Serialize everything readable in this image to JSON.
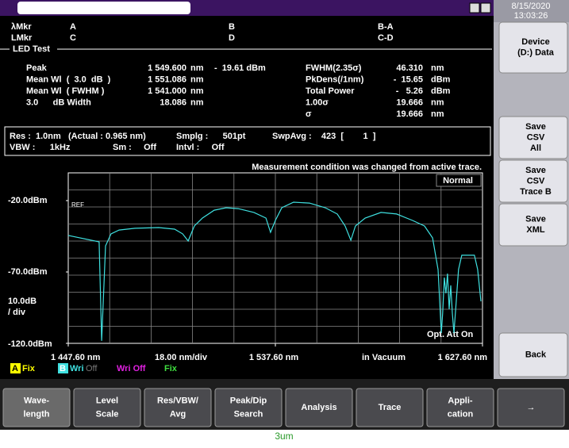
{
  "title_bar": {
    "date": "8/15/2020",
    "time": "13:03:26"
  },
  "markers": {
    "rows": [
      [
        "λMkr",
        "A",
        "B",
        "B-A"
      ],
      [
        "LMkr",
        "C",
        "D",
        "C-D"
      ]
    ]
  },
  "section": "LED Test",
  "results": {
    "left": [
      [
        "Peak",
        "1 549.600",
        "nm"
      ],
      [
        "Mean Wl  (  3.0  dB  )",
        "1 551.086",
        "nm"
      ],
      [
        "Mean Wl  ( FWHM )",
        "1 541.000",
        "nm"
      ],
      [
        "3.0      dB Width",
        "18.086",
        "nm"
      ]
    ],
    "peak_level": "-  19.61 dBm",
    "right": [
      [
        "FWHM(2.35σ)",
        "46.310",
        "nm"
      ],
      [
        "PkDens(/1nm)",
        "-  15.65",
        "dBm"
      ],
      [
        "Total Power",
        "-   5.26",
        "dBm"
      ],
      [
        "1.00σ",
        "19.666",
        "nm"
      ],
      [
        "σ",
        "19.666",
        "nm"
      ]
    ]
  },
  "settings": [
    [
      "Res :  1.0nm   (Actual : 0.965 nm)",
      "Smplg :      501pt",
      "SwpAvg :    423  [        1  ]"
    ],
    [
      "VBW :      1kHz",
      "Sm :     Off",
      "Intvl :     Off"
    ]
  ],
  "notice": "Measurement condition was changed from active trace.",
  "plot_labels": {
    "mode": "Normal",
    "ref": "REF",
    "att": "Opt. Att On",
    "scale": [
      "10.0dB",
      "/ div"
    ],
    "x_div": "18.00 nm/div",
    "medium": "in Vacuum"
  },
  "legend": [
    {
      "key": "A",
      "text": "Fix"
    },
    {
      "key": "B",
      "text": "Wri",
      "state": "Off"
    },
    {
      "text": "Wri Off"
    },
    {
      "text": "Fix"
    }
  ],
  "chart_data": {
    "type": "line",
    "color": "#3fe0e0",
    "xlim": [
      1447.6,
      1627.6
    ],
    "ylim": [
      -20,
      -120
    ],
    "xticks": [
      {
        "value": 1447.6,
        "label": "1 447.60 nm"
      },
      {
        "value": 1537.6,
        "label": "1 537.60 nm"
      },
      {
        "value": 1627.6,
        "label": "1 627.60 nm"
      }
    ],
    "yticks": [
      {
        "value": -20,
        "label": "-20.0dBm"
      },
      {
        "value": -70,
        "label": "-70.0dBm"
      },
      {
        "value": -120,
        "label": "-120.0dBm"
      }
    ],
    "x": [
      1447.6,
      1461.0,
      1462.1,
      1463.8,
      1466.2,
      1469.7,
      1476.6,
      1486.9,
      1493.8,
      1497.3,
      1499.7,
      1502.4,
      1505.9,
      1511.0,
      1516.2,
      1521.4,
      1528.3,
      1533.5,
      1535.5,
      1537.6,
      1540.4,
      1545.5,
      1552.4,
      1559.3,
      1564.5,
      1567.9,
      1570.4,
      1572.4,
      1576.6,
      1583.5,
      1590.3,
      1597.2,
      1602.4,
      1605.9,
      1608.3,
      1609.7,
      1610.3,
      1611.0,
      1611.7,
      1612.4,
      1613.1,
      1613.8,
      1614.5,
      1615.2,
      1616.2,
      1617.2,
      1618.6,
      1624.1,
      1625.5,
      1626.9
    ],
    "values": [
      -44.4,
      -48.9,
      -118.3,
      -51.7,
      -43.3,
      -40.6,
      -39.4,
      -38.9,
      -40.0,
      -43.3,
      -48.3,
      -37.8,
      -32.2,
      -26.7,
      -25.0,
      -25.6,
      -28.3,
      -32.2,
      -42.2,
      -33.9,
      -25.0,
      -21.1,
      -21.7,
      -25.0,
      -29.4,
      -37.8,
      -47.8,
      -37.8,
      -32.2,
      -28.3,
      -29.4,
      -33.9,
      -37.8,
      -46.1,
      -68.3,
      -112.8,
      -98.9,
      -73.9,
      -85.0,
      -71.1,
      -96.1,
      -79.4,
      -98.9,
      -112.8,
      -90.6,
      -68.3,
      -58.3,
      -58.3,
      -68.3,
      -90.6
    ]
  },
  "softkeys": [
    [
      "Device",
      "(D:) Data"
    ],
    [
      "Save",
      "CSV",
      "All"
    ],
    [
      "Save",
      "CSV",
      "Trace B"
    ],
    [
      "Save",
      "XML"
    ],
    [
      "Back"
    ]
  ],
  "function_keys": [
    [
      "Wave-",
      "length"
    ],
    [
      "Level",
      "Scale"
    ],
    [
      "Res/VBW/",
      "Avg"
    ],
    [
      "Peak/Dip",
      "Search"
    ],
    [
      "Analysis"
    ],
    [
      "Trace"
    ],
    [
      "Appli-",
      "cation"
    ],
    [
      "→"
    ]
  ],
  "footer": "3um"
}
